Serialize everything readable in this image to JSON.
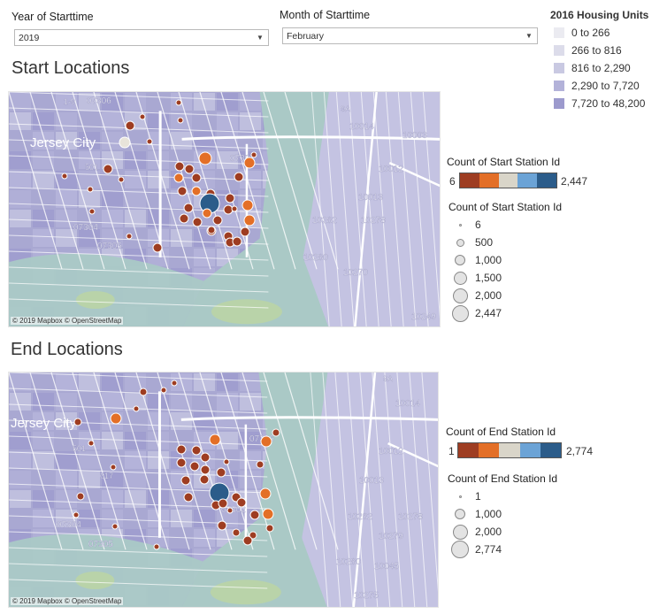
{
  "filters": {
    "year": {
      "label": "Year of Starttime",
      "value": "2019"
    },
    "month": {
      "label": "Month of Starttime",
      "value": "February"
    }
  },
  "housing_legend": {
    "title": "2016 Housing Units",
    "items": [
      {
        "label": "0 to 266",
        "color": "#ebebf1"
      },
      {
        "label": "266 to 816",
        "color": "#dcdcea"
      },
      {
        "label": "816 to 2,290",
        "color": "#c9c9e2"
      },
      {
        "label": "2,290 to 7,720",
        "color": "#b3b2d9"
      },
      {
        "label": "7,720 to 48,200",
        "color": "#9c9acd"
      }
    ]
  },
  "start": {
    "title": "Start Locations",
    "attribution": "© 2019 Mapbox © OpenStreetMap",
    "map_labels": [
      "Jersey City",
      "07306",
      "07304",
      "07305",
      "07302",
      "10014",
      "10003",
      "10012",
      "10013",
      "10282",
      "10278",
      "10280",
      "10270",
      "10249",
      "501",
      "1-9",
      "9A"
    ],
    "color_legend": {
      "title": "Count of Start Station Id",
      "min": "6",
      "max": "2,447"
    },
    "size_legend": {
      "title": "Count of Start Station Id",
      "items": [
        "6",
        "500",
        "1,000",
        "1,500",
        "2,000",
        "2,447"
      ]
    }
  },
  "end": {
    "title": "End Locations",
    "attribution": "© 2019 Mapbox © OpenStreetMap",
    "map_labels": [
      "Jersey City",
      "07306",
      "07304",
      "07305",
      "07302",
      "10014",
      "10012",
      "10013",
      "10282",
      "10278",
      "10280",
      "10045",
      "10279",
      "10275",
      "501",
      "617",
      "9A"
    ],
    "color_legend": {
      "title": "Count of End Station Id",
      "min": "1",
      "max": "2,774"
    },
    "size_legend": {
      "title": "Count of End Station Id",
      "items": [
        "1",
        "1,000",
        "2,000",
        "2,774"
      ]
    }
  },
  "colors": {
    "ramp": [
      "#9e3d22",
      "#e36f27",
      "#d9d5c9",
      "#6ba3d6",
      "#2b5c8a"
    ],
    "water": "#aac9c6",
    "land": "#a9a8d2",
    "green": "#b9d3a9"
  }
}
